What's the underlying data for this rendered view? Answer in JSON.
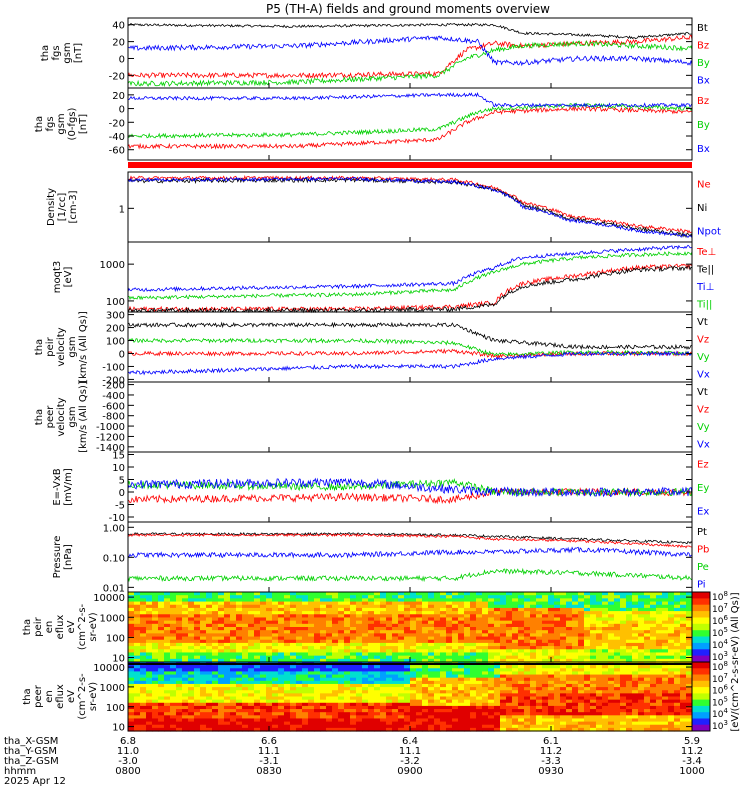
{
  "title": "P5 (TH-A) fields and ground moments overview",
  "colors": {
    "black": "#000000",
    "red": "#ff0000",
    "green": "#00d000",
    "blue": "#0000ff"
  },
  "chart_data": [
    {
      "type": "line",
      "ylabel": [
        "tha",
        "fgs",
        "gsm",
        "[nT]"
      ],
      "yticks": [
        -20,
        0,
        20,
        40
      ],
      "ylim": [
        -35,
        48
      ],
      "series": [
        {
          "name": "Bt",
          "color": "black",
          "profile": [
            [
              0,
              40
            ],
            [
              0.3,
              38
            ],
            [
              0.55,
              40
            ],
            [
              0.62,
              40
            ],
            [
              0.65,
              40
            ],
            [
              0.7,
              30
            ],
            [
              0.8,
              28
            ],
            [
              0.9,
              25
            ],
            [
              1,
              30
            ]
          ],
          "noise": 1.5
        },
        {
          "name": "Bz",
          "color": "red",
          "profile": [
            [
              0,
              -20
            ],
            [
              0.3,
              -20
            ],
            [
              0.55,
              -18
            ],
            [
              0.6,
              10
            ],
            [
              0.65,
              18
            ],
            [
              0.7,
              15
            ],
            [
              0.8,
              18
            ],
            [
              0.9,
              20
            ],
            [
              1,
              25
            ]
          ],
          "noise": 3
        },
        {
          "name": "By",
          "color": "green",
          "profile": [
            [
              0,
              -30
            ],
            [
              0.3,
              -28
            ],
            [
              0.55,
              -20
            ],
            [
              0.6,
              0
            ],
            [
              0.65,
              10
            ],
            [
              0.7,
              15
            ],
            [
              0.8,
              18
            ],
            [
              0.9,
              15
            ],
            [
              1,
              12
            ]
          ],
          "noise": 3
        },
        {
          "name": "Bx",
          "color": "blue",
          "profile": [
            [
              0,
              12
            ],
            [
              0.3,
              15
            ],
            [
              0.55,
              25
            ],
            [
              0.62,
              20
            ],
            [
              0.65,
              -5
            ],
            [
              0.7,
              -5
            ],
            [
              0.8,
              0
            ],
            [
              0.9,
              0
            ],
            [
              1,
              -5
            ]
          ],
          "noise": 3
        }
      ]
    },
    {
      "type": "line",
      "ylabel": [
        "tha",
        "fgs",
        "gsm",
        "(0-fgs)",
        "[nT]"
      ],
      "yticks": [
        -60,
        -40,
        -20,
        0,
        20
      ],
      "ylim": [
        -75,
        30
      ],
      "series": [
        {
          "name": "Bz",
          "color": "red",
          "profile": [
            [
              0,
              -55
            ],
            [
              0.3,
              -55
            ],
            [
              0.55,
              -45
            ],
            [
              0.6,
              -20
            ],
            [
              0.65,
              -5
            ],
            [
              0.8,
              0
            ],
            [
              1,
              -5
            ]
          ],
          "noise": 3
        },
        {
          "name": "By",
          "color": "green",
          "profile": [
            [
              0,
              -40
            ],
            [
              0.3,
              -38
            ],
            [
              0.55,
              -30
            ],
            [
              0.62,
              -5
            ],
            [
              0.65,
              0
            ],
            [
              0.8,
              5
            ],
            [
              1,
              0
            ]
          ],
          "noise": 3
        },
        {
          "name": "Bx",
          "color": "blue",
          "profile": [
            [
              0,
              15
            ],
            [
              0.3,
              15
            ],
            [
              0.55,
              20
            ],
            [
              0.62,
              20
            ],
            [
              0.65,
              5
            ],
            [
              0.8,
              5
            ],
            [
              1,
              5
            ]
          ],
          "noise": 2.5
        }
      ]
    },
    {
      "type": "line",
      "ylabel": [
        "Density",
        "[1/cc]",
        "[cm-3]"
      ],
      "ylog": true,
      "yticks": [
        1
      ],
      "ylim": [
        0.1,
        12
      ],
      "series": [
        {
          "name": "Ne",
          "color": "red",
          "profile": [
            [
              0,
              8
            ],
            [
              0.4,
              8
            ],
            [
              0.58,
              7
            ],
            [
              0.65,
              4
            ],
            [
              0.7,
              1.5
            ],
            [
              0.78,
              0.6
            ],
            [
              0.9,
              0.3
            ],
            [
              1,
              0.2
            ]
          ],
          "noise": 0.05
        },
        {
          "name": "Ni",
          "color": "black",
          "profile": [
            [
              0,
              6.5
            ],
            [
              0.4,
              7
            ],
            [
              0.58,
              6
            ],
            [
              0.65,
              3.5
            ],
            [
              0.7,
              1.2
            ],
            [
              0.78,
              0.5
            ],
            [
              0.9,
              0.25
            ],
            [
              1,
              0.15
            ]
          ],
          "noise": 0.06
        },
        {
          "name": "Npot",
          "color": "blue",
          "profile": [
            [
              0,
              7
            ],
            [
              0.4,
              7.5
            ],
            [
              0.58,
              6
            ],
            [
              0.65,
              3.5
            ],
            [
              0.7,
              1.1
            ],
            [
              0.78,
              0.45
            ],
            [
              0.9,
              0.22
            ],
            [
              1,
              0.14
            ]
          ],
          "noise": 0.05
        }
      ]
    },
    {
      "type": "line",
      "ylabel": [
        "moqt3",
        "[eV]"
      ],
      "ylog": true,
      "yticks": [
        100,
        1000
      ],
      "ylim": [
        50,
        4000
      ],
      "series": [
        {
          "name": "Te⊥",
          "color": "red",
          "profile": [
            [
              0,
              60
            ],
            [
              0.4,
              60
            ],
            [
              0.58,
              70
            ],
            [
              0.65,
              90
            ],
            [
              0.7,
              300
            ],
            [
              0.8,
              500
            ],
            [
              0.9,
              800
            ],
            [
              1,
              900
            ]
          ],
          "noise": 0.06
        },
        {
          "name": "Te||",
          "color": "black",
          "profile": [
            [
              0,
              55
            ],
            [
              0.4,
              55
            ],
            [
              0.58,
              60
            ],
            [
              0.65,
              80
            ],
            [
              0.7,
              250
            ],
            [
              0.8,
              400
            ],
            [
              0.9,
              700
            ],
            [
              1,
              800
            ]
          ],
          "noise": 0.06
        },
        {
          "name": "Ti⊥",
          "color": "blue",
          "profile": [
            [
              0,
              200
            ],
            [
              0.4,
              250
            ],
            [
              0.58,
              300
            ],
            [
              0.65,
              800
            ],
            [
              0.7,
              1500
            ],
            [
              0.8,
              2000
            ],
            [
              0.9,
              2500
            ],
            [
              1,
              3000
            ]
          ],
          "noise": 0.05
        },
        {
          "name": "Ti||",
          "color": "green",
          "profile": [
            [
              0,
              120
            ],
            [
              0.4,
              150
            ],
            [
              0.58,
              200
            ],
            [
              0.65,
              600
            ],
            [
              0.7,
              1000
            ],
            [
              0.8,
              1500
            ],
            [
              0.9,
              1800
            ],
            [
              1,
              2000
            ]
          ],
          "noise": 0.05
        }
      ]
    },
    {
      "type": "line",
      "ylabel": [
        "tha",
        "peir",
        "velocity",
        "gsm",
        "[km/s (All Qs)]"
      ],
      "yticks": [
        -200,
        -100,
        0,
        100,
        200,
        300
      ],
      "ylim": [
        -220,
        320
      ],
      "series": [
        {
          "name": "Vt",
          "color": "black",
          "profile": [
            [
              0,
              220
            ],
            [
              0.4,
              220
            ],
            [
              0.58,
              220
            ],
            [
              0.65,
              100
            ],
            [
              0.8,
              50
            ],
            [
              1,
              50
            ]
          ],
          "noise": 15
        },
        {
          "name": "Vz",
          "color": "red",
          "profile": [
            [
              0,
              0
            ],
            [
              0.4,
              0
            ],
            [
              0.58,
              20
            ],
            [
              0.65,
              -20
            ],
            [
              0.8,
              0
            ],
            [
              1,
              0
            ]
          ],
          "noise": 15
        },
        {
          "name": "Vy",
          "color": "green",
          "profile": [
            [
              0,
              100
            ],
            [
              0.4,
              100
            ],
            [
              0.58,
              80
            ],
            [
              0.65,
              -10
            ],
            [
              0.8,
              10
            ],
            [
              1,
              0
            ]
          ],
          "noise": 15
        },
        {
          "name": "Vx",
          "color": "blue",
          "profile": [
            [
              0,
              -150
            ],
            [
              0.4,
              -100
            ],
            [
              0.58,
              -100
            ],
            [
              0.65,
              -40
            ],
            [
              0.8,
              0
            ],
            [
              1,
              0
            ]
          ],
          "noise": 15
        }
      ]
    },
    {
      "type": "line",
      "ylabel": [
        "tha",
        "peer",
        "velocity",
        "gsm",
        "[km/s (All Qs)]"
      ],
      "yticks": [
        -1400,
        -1200,
        -1000,
        -800,
        -600,
        -400,
        -200
      ],
      "ylim": [
        -1500,
        -150
      ],
      "series": [
        {
          "name": "Vt",
          "color": "black",
          "profile": [],
          "noise": 0
        },
        {
          "name": "Vz",
          "color": "red",
          "profile": [],
          "noise": 0
        },
        {
          "name": "Vy",
          "color": "green",
          "profile": [],
          "noise": 0
        },
        {
          "name": "Vx",
          "color": "blue",
          "profile": [],
          "noise": 0
        }
      ]
    },
    {
      "type": "line",
      "ylabel": [
        "E=-VxB",
        "[mV/m]"
      ],
      "yticks": [
        -10,
        -5,
        0,
        5,
        10,
        15
      ],
      "ylim": [
        -12,
        16
      ],
      "series": [
        {
          "name": "Ez",
          "color": "red",
          "profile": [
            [
              0,
              -3
            ],
            [
              0.4,
              -2
            ],
            [
              0.58,
              -3
            ],
            [
              0.65,
              0
            ],
            [
              1,
              0
            ]
          ],
          "noise": 1.5
        },
        {
          "name": "Ey",
          "color": "green",
          "profile": [
            [
              0,
              3
            ],
            [
              0.4,
              2
            ],
            [
              0.58,
              4
            ],
            [
              0.65,
              0
            ],
            [
              1,
              0
            ]
          ],
          "noise": 1.5
        },
        {
          "name": "Ex",
          "color": "blue",
          "profile": [
            [
              0,
              3
            ],
            [
              0.4,
              4
            ],
            [
              0.58,
              1
            ],
            [
              0.65,
              0
            ],
            [
              1,
              0
            ]
          ],
          "noise": 1.8
        }
      ]
    },
    {
      "type": "line",
      "ylabel": [
        "Pressure",
        "[nPa]"
      ],
      "ylog": true,
      "yticks": [
        0.01,
        0.1,
        1.0
      ],
      "yticklabels": [
        "0.01",
        "0.10",
        "1.00"
      ],
      "ylim": [
        0.007,
        1.5
      ],
      "series": [
        {
          "name": "Pt",
          "color": "black",
          "profile": [
            [
              0,
              0.6
            ],
            [
              0.4,
              0.6
            ],
            [
              0.58,
              0.55
            ],
            [
              0.65,
              0.5
            ],
            [
              0.8,
              0.4
            ],
            [
              1,
              0.3
            ]
          ],
          "noise": 0.04
        },
        {
          "name": "Pb",
          "color": "red",
          "profile": [
            [
              0,
              0.55
            ],
            [
              0.4,
              0.55
            ],
            [
              0.58,
              0.5
            ],
            [
              0.65,
              0.4
            ],
            [
              0.8,
              0.35
            ],
            [
              1,
              0.22
            ]
          ],
          "noise": 0.04
        },
        {
          "name": "Pe",
          "color": "green",
          "profile": [
            [
              0,
              0.02
            ],
            [
              0.4,
              0.02
            ],
            [
              0.58,
              0.02
            ],
            [
              0.65,
              0.035
            ],
            [
              0.8,
              0.03
            ],
            [
              1,
              0.02
            ]
          ],
          "noise": 0.08
        },
        {
          "name": "Pi",
          "color": "blue",
          "profile": [
            [
              0,
              0.12
            ],
            [
              0.4,
              0.12
            ],
            [
              0.58,
              0.15
            ],
            [
              0.65,
              0.15
            ],
            [
              0.8,
              0.18
            ],
            [
              1,
              0.12
            ]
          ],
          "noise": 0.08
        }
      ]
    },
    {
      "type": "heatmap",
      "ylabel": [
        "tha",
        "peir",
        "en",
        "eflux",
        "eV",
        "(cm^2-s-",
        "sr-eV)"
      ],
      "ylog": true,
      "yticks": [
        10,
        100,
        1000,
        10000
      ],
      "yticklabels": [
        "10",
        "100",
        "1000",
        "10000"
      ],
      "ylim": [
        6,
        18000
      ]
    },
    {
      "type": "heatmap",
      "ylabel": [
        "tha",
        "peer",
        "en",
        "eflux",
        "eV",
        "(cm^2-s-",
        "sr-eV)"
      ],
      "ylog": true,
      "yticks": [
        10,
        100,
        1000,
        10000
      ],
      "yticklabels": [
        "10",
        "100",
        "1000",
        "10000"
      ],
      "ylim": [
        6,
        18000
      ]
    }
  ],
  "colorbar": {
    "label": "[eV/(cm^2-s-sr-eV) (All Qs)]",
    "ticks": [
      "10^8",
      "10^7",
      "10^6",
      "10^5",
      "10^4",
      "10^3"
    ],
    "ticks2": [
      "10^8",
      "10^7",
      "10^6",
      "10^5",
      "10^4",
      "10^3"
    ]
  },
  "x_axis": {
    "row_labels": [
      "tha_X-GSM",
      "tha_Y-GSM",
      "tha_Z-GSM",
      "hhmm",
      "2025 Apr 12"
    ],
    "columns": [
      [
        "6.8",
        "11.0",
        "-3.0",
        "0800"
      ],
      [
        "6.6",
        "11.1",
        "-3.1",
        "0830"
      ],
      [
        "6.4",
        "11.1",
        "-3.2",
        "0900"
      ],
      [
        "6.1",
        "11.2",
        "-3.3",
        "0930"
      ],
      [
        "5.9",
        "11.2",
        "-3.4",
        "1000"
      ]
    ]
  }
}
